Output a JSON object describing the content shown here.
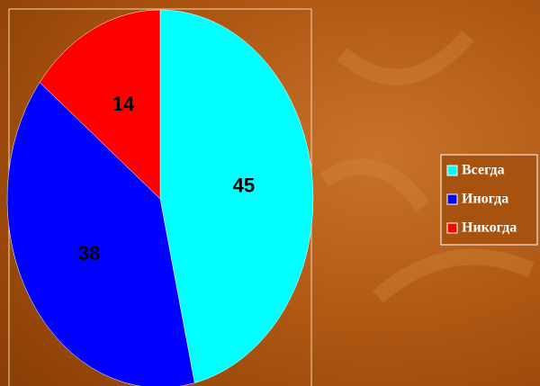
{
  "chart_data": {
    "type": "pie",
    "categories": [
      "Всегда",
      "Иногда",
      "Никогда"
    ],
    "values": [
      45,
      38,
      14
    ],
    "colors": [
      "#00ffff",
      "#0000ff",
      "#ff0000"
    ],
    "legend": "right"
  }
}
